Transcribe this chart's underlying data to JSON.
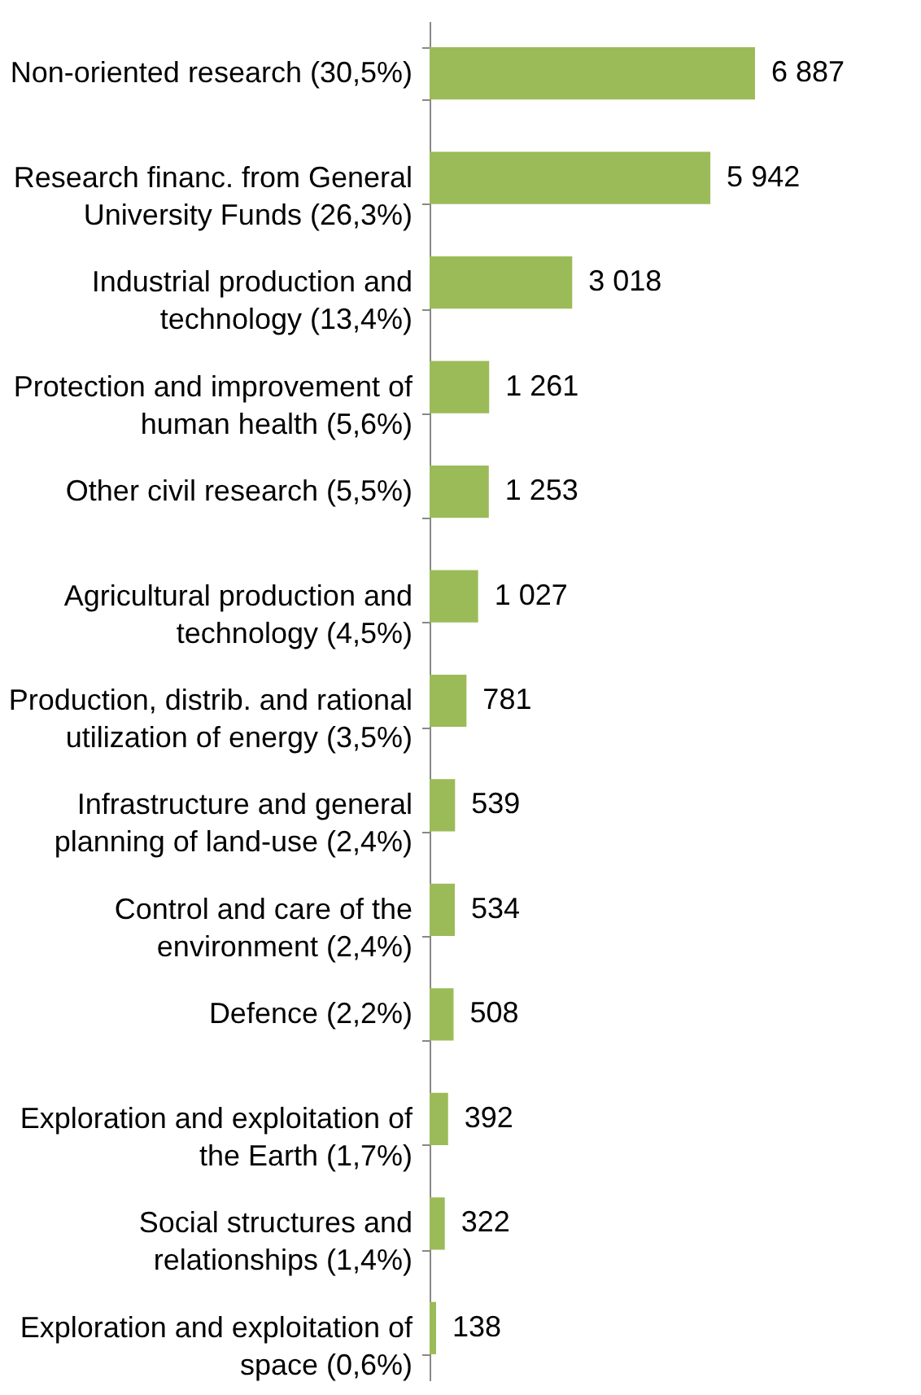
{
  "chart_data": {
    "type": "bar",
    "orientation": "horizontal",
    "categories": [
      "Non-oriented research (30,5%)",
      "Research financ. from General University Funds (26,3%)",
      "Industrial production and technology (13,4%)",
      "Protection and improvement of human health (5,6%)",
      "Other civil research (5,5%)",
      "Agricultural production and technology (4,5%)",
      "Production, distrib. and rational utilization of energy (3,5%)",
      "Infrastructure and general planning of land-use (2,4%)",
      "Control and care of the environment (2,4%)",
      "Defence (2,2%)",
      "Exploration and exploitation of the Earth (1,7%)",
      "Social structures and relationships (1,4%)",
      "Exploration and exploitation of space (0,6%)"
    ],
    "values": [
      6887,
      5942,
      3018,
      1261,
      1253,
      1027,
      781,
      539,
      534,
      508,
      392,
      322,
      138
    ],
    "color": "#9bbb59",
    "data_labels": true
  }
}
